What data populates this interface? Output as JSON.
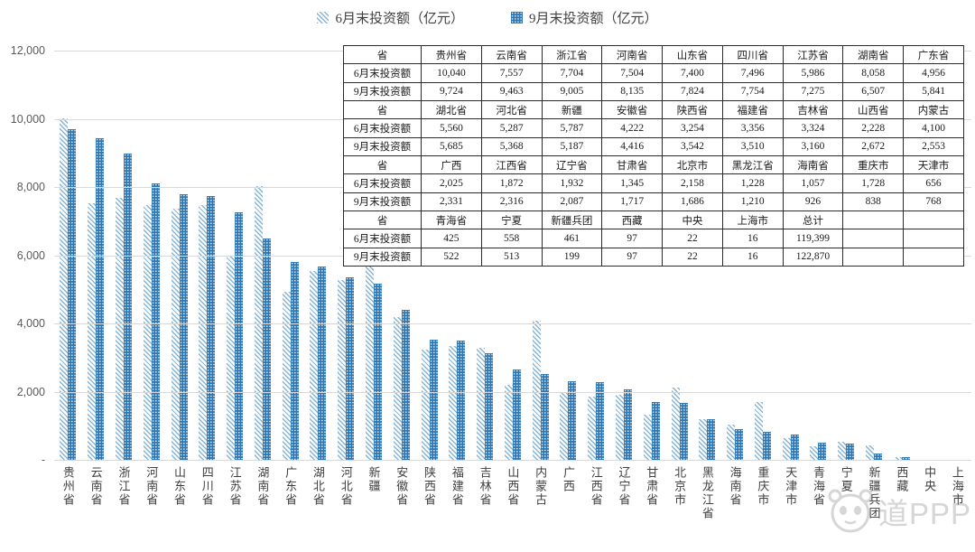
{
  "chart_data": {
    "type": "bar",
    "title": "",
    "xlabel": "",
    "ylabel": "",
    "ylim": [
      0,
      12000
    ],
    "grid": true,
    "legend_position": "top",
    "categories": [
      "贵州省",
      "云南省",
      "浙江省",
      "河南省",
      "山东省",
      "四川省",
      "江苏省",
      "湖南省",
      "广东省",
      "湖北省",
      "河北省",
      "新疆",
      "安徽省",
      "陕西省",
      "福建省",
      "吉林省",
      "山西省",
      "内蒙古",
      "广西",
      "江西省",
      "辽宁省",
      "甘肃省",
      "北京市",
      "黑龙江省",
      "海南省",
      "重庆市",
      "天津市",
      "青海省",
      "宁夏",
      "新疆兵团",
      "西藏",
      "中央",
      "上海市"
    ],
    "series": [
      {
        "name": "6月末投资额（亿元）",
        "values": [
          10040,
          7557,
          7704,
          7504,
          7400,
          7496,
          5986,
          8058,
          4956,
          5560,
          5287,
          5787,
          4222,
          3254,
          3356,
          3324,
          2228,
          4100,
          2025,
          1872,
          1932,
          1345,
          2158,
          1228,
          1057,
          1728,
          656,
          425,
          558,
          461,
          97,
          22,
          16
        ]
      },
      {
        "name": "9月末投资额（亿元）",
        "values": [
          9724,
          9463,
          9005,
          8135,
          7824,
          7754,
          7275,
          6507,
          5841,
          5685,
          5368,
          5187,
          4416,
          3542,
          3510,
          3160,
          2672,
          2553,
          2331,
          2316,
          2087,
          1717,
          1686,
          1210,
          926,
          838,
          768,
          522,
          513,
          199,
          97,
          22,
          16
        ]
      }
    ],
    "yticks": [
      {
        "value": 12000,
        "label": "12,000"
      },
      {
        "value": 10000,
        "label": "10,000"
      },
      {
        "value": 8000,
        "label": "8,000"
      },
      {
        "value": 6000,
        "label": "6,000"
      },
      {
        "value": 4000,
        "label": "4,000"
      },
      {
        "value": 2000,
        "label": "2,000"
      },
      {
        "value": 0,
        "label": "-"
      }
    ]
  },
  "table": {
    "rows": [
      [
        "省",
        "贵州省",
        "云南省",
        "浙江省",
        "河南省",
        "山东省",
        "四川省",
        "江苏省",
        "湖南省",
        "广东省"
      ],
      [
        "6月末投资额",
        "10,040",
        "7,557",
        "7,704",
        "7,504",
        "7,400",
        "7,496",
        "5,986",
        "8,058",
        "4,956"
      ],
      [
        "9月末投资额",
        "9,724",
        "9,463",
        "9,005",
        "8,135",
        "7,824",
        "7,754",
        "7,275",
        "6,507",
        "5,841"
      ],
      [
        "省",
        "湖北省",
        "河北省",
        "新疆",
        "安徽省",
        "陕西省",
        "福建省",
        "吉林省",
        "山西省",
        "内蒙古"
      ],
      [
        "6月末投资额",
        "5,560",
        "5,287",
        "5,787",
        "4,222",
        "3,254",
        "3,356",
        "3,324",
        "2,228",
        "4,100"
      ],
      [
        "9月末投资额",
        "5,685",
        "5,368",
        "5,187",
        "4,416",
        "3,542",
        "3,510",
        "3,160",
        "2,672",
        "2,553"
      ],
      [
        "省",
        "广西",
        "江西省",
        "辽宁省",
        "甘肃省",
        "北京市",
        "黑龙江省",
        "海南省",
        "重庆市",
        "天津市"
      ],
      [
        "6月末投资额",
        "2,025",
        "1,872",
        "1,932",
        "1,345",
        "2,158",
        "1,228",
        "1,057",
        "1,728",
        "656"
      ],
      [
        "9月末投资额",
        "2,331",
        "2,316",
        "2,087",
        "1,717",
        "1,686",
        "1,210",
        "926",
        "838",
        "768"
      ],
      [
        "省",
        "青海省",
        "宁夏",
        "新疆兵团",
        "西藏",
        "中央",
        "上海市",
        "总计",
        "",
        ""
      ],
      [
        "6月末投资额",
        "425",
        "558",
        "461",
        "97",
        "22",
        "16",
        "119,399",
        "",
        ""
      ],
      [
        "9月末投资额",
        "522",
        "513",
        "199",
        "97",
        "22",
        "16",
        "122,870",
        "",
        ""
      ]
    ]
  },
  "watermark": {
    "text": "道PPP"
  },
  "colors": {
    "jun_stripe": "#85b4d9",
    "sep_fill": "#2e77b5",
    "grid": "#d9d9d9",
    "axis_text": "#595959",
    "table_border": "#2b2b2b",
    "watermark": "#cfcfcf"
  }
}
